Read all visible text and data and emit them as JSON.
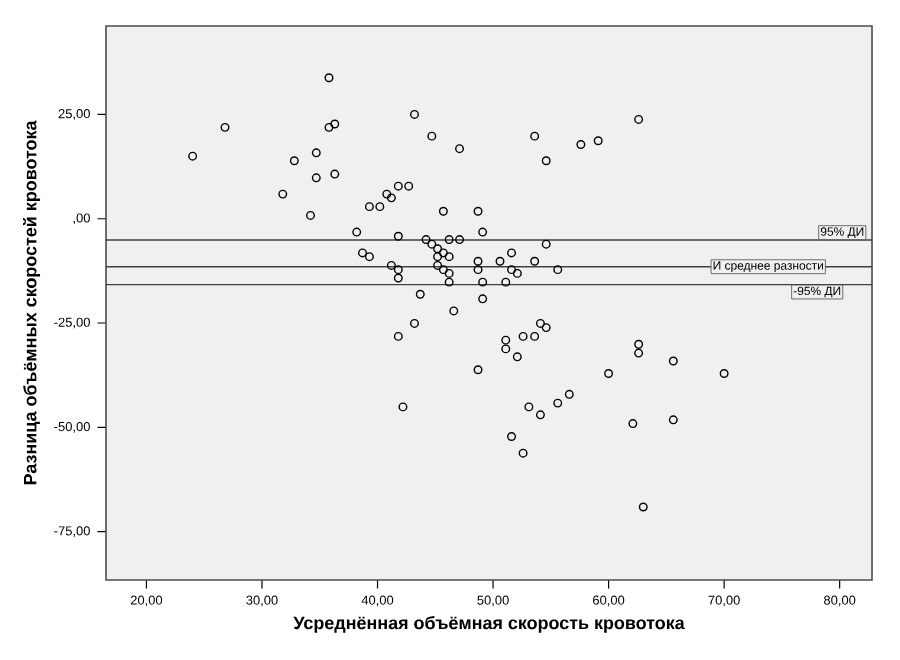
{
  "chart_data": {
    "type": "scatter",
    "xlabel": "Усреднённая объёмная скорость кровотока",
    "ylabel": "Разница объёмных скоростей кровотока",
    "color": "#000000",
    "marker": "circle",
    "grid": false,
    "xlim": [
      16.5,
      82.8
    ],
    "ylim": [
      -86.6,
      46.2
    ],
    "xticks": [
      {
        "value": 20,
        "label": "20,00"
      },
      {
        "value": 30,
        "label": "30,00"
      },
      {
        "value": 40,
        "label": "40,00"
      },
      {
        "value": 50,
        "label": "50,00"
      },
      {
        "value": 60,
        "label": "60,00"
      },
      {
        "value": 70,
        "label": "70,00"
      },
      {
        "value": 80,
        "label": "80,00"
      }
    ],
    "yticks": [
      {
        "value": -75,
        "label": "-75,00"
      },
      {
        "value": -50,
        "label": "-50,00"
      },
      {
        "value": -25,
        "label": "-25,00"
      },
      {
        "value": 0,
        "label": ",00"
      },
      {
        "value": 25,
        "label": "25,00"
      }
    ],
    "ref_lines": [
      {
        "axis": "y",
        "value": -5.1,
        "label": "95% ДИ"
      },
      {
        "axis": "y",
        "value": -11.5,
        "label": "И среднее разности"
      },
      {
        "axis": "y",
        "value": -15.8,
        "label": "-95% ДИ"
      }
    ],
    "x": [
      24.0,
      26.8,
      35.8,
      35.8,
      36.3,
      32.8,
      34.7,
      34.7,
      36.3,
      31.8,
      34.2,
      43.2,
      44.7,
      47.1,
      53.6,
      57.6,
      59.1,
      62.6,
      54.6,
      39.3,
      40.2,
      40.8,
      41.2,
      41.8,
      42.7,
      45.7,
      48.7,
      38.2,
      41.8,
      38.7,
      39.3,
      41.2,
      41.8,
      41.8,
      44.2,
      44.7,
      45.2,
      45.7,
      46.2,
      45.2,
      45.2,
      45.7,
      46.2,
      46.2,
      46.2,
      47.1,
      49.1,
      48.7,
      48.7,
      49.1,
      50.6,
      51.6,
      51.6,
      52.1,
      51.1,
      53.6,
      54.6,
      55.6,
      43.7,
      49.1,
      46.6,
      43.2,
      41.8,
      51.1,
      51.1,
      52.1,
      52.6,
      53.6,
      54.1,
      54.6,
      48.7,
      42.2,
      53.1,
      54.1,
      55.6,
      56.6,
      51.6,
      52.6,
      60.0,
      62.6,
      62.6,
      65.6,
      70.0,
      62.1,
      65.6,
      63.0
    ],
    "values": [
      15,
      21.9,
      33.8,
      21.9,
      22.7,
      13.9,
      15.8,
      9.8,
      10.7,
      5.9,
      0.8,
      25,
      19.8,
      16.8,
      19.8,
      17.8,
      18.7,
      23.8,
      13.9,
      2.9,
      2.9,
      5.9,
      5.0,
      7.8,
      7.8,
      1.8,
      1.8,
      -3.2,
      -4.2,
      -8.2,
      -9.1,
      -11.2,
      -12.2,
      -14.2,
      -5.0,
      -6.1,
      -7.2,
      -8.2,
      -9.1,
      -9.1,
      -11.2,
      -12.2,
      -13.1,
      -15.2,
      -5.0,
      -5.0,
      -3.2,
      -10.2,
      -12.2,
      -15.2,
      -10.2,
      -8.2,
      -12.2,
      -13.1,
      -15.2,
      -10.2,
      -6.1,
      -12.2,
      -18.1,
      -19.2,
      -22.1,
      -25.1,
      -28.2,
      -29.1,
      -31.2,
      -33.1,
      -28.2,
      -28.2,
      -25.1,
      -26.1,
      -36.2,
      -45.1,
      -45.1,
      -47.0,
      -44.2,
      -42.1,
      -52.2,
      -56.2,
      -37.1,
      -30.1,
      -32.2,
      -34.1,
      -37.1,
      -49.1,
      -48.2,
      -69.1
    ]
  }
}
